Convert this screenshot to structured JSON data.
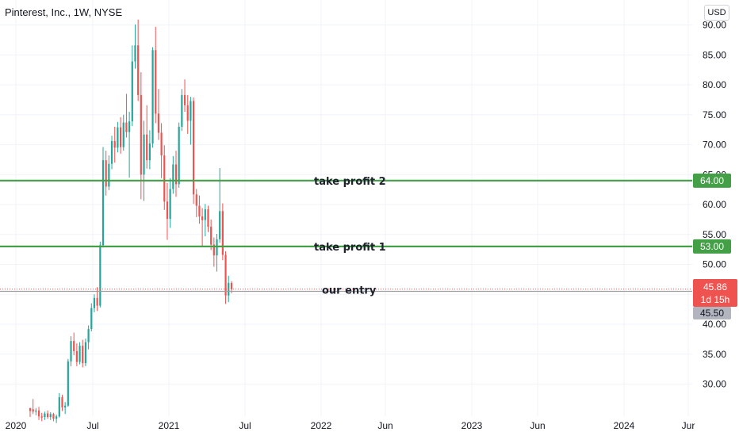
{
  "title": "Pinterest, Inc., 1W, NYSE",
  "currency": "USD",
  "colors": {
    "up": "#26a69a",
    "down": "#ef5350",
    "level_line": "#43a047",
    "grid": "#f0f3fa",
    "entry_line": "#9e9e9e",
    "last_price": "#ef5350",
    "entry_badge": "#b2b5be"
  },
  "chart_data": {
    "type": "candlestick",
    "y_ticks": [
      30,
      35,
      40,
      45,
      50,
      55,
      60,
      65,
      70,
      75,
      80,
      85,
      90
    ],
    "y_tick_labels": [
      "30.00",
      "35.00",
      "40.00",
      "45.00",
      "50.00",
      "55.00",
      "60.00",
      "65.00",
      "70.00",
      "75.00",
      "80.00",
      "85.00",
      "90.00"
    ],
    "x_tick_labels": [
      "2020",
      "Jul",
      "2021",
      "Jul",
      "2022",
      "Jun",
      "2023",
      "Jun",
      "2024",
      "Jur"
    ],
    "ylim": [
      25,
      92
    ],
    "levels": [
      {
        "name": "take profit 2",
        "value": 64.0,
        "label": "64.00"
      },
      {
        "name": "take profit 1",
        "value": 53.0,
        "label": "53.00"
      }
    ],
    "entry": {
      "name": "our entry",
      "value": 45.5,
      "label": "45.50"
    },
    "last_price": {
      "value": 45.86,
      "label": "45.86",
      "countdown": "1d 15h"
    },
    "candles": [
      [
        26,
        26,
        24.5,
        25.5
      ],
      [
        25.8,
        27.5,
        25,
        25.4
      ],
      [
        25.4,
        26,
        24.8,
        25.6
      ],
      [
        25.6,
        26.2,
        24,
        24.6
      ],
      [
        24.6,
        25.2,
        23.8,
        24.4
      ],
      [
        24.5,
        25.4,
        24,
        25.1
      ],
      [
        25.1,
        25.6,
        24.2,
        24.5
      ],
      [
        24.5,
        25.3,
        24,
        25.0
      ],
      [
        25.0,
        25.2,
        23.8,
        24.2
      ],
      [
        24.2,
        24.9,
        23.5,
        24.6
      ],
      [
        24.6,
        28.5,
        24.4,
        27.8
      ],
      [
        27.8,
        28.2,
        25.5,
        26.1
      ],
      [
        26.1,
        27.0,
        25.0,
        26.4
      ],
      [
        26.4,
        34.2,
        26.2,
        33.8
      ],
      [
        33.8,
        38.0,
        33.0,
        37.2
      ],
      [
        37.2,
        38.6,
        34.8,
        35.5
      ],
      [
        35.5,
        36.8,
        33.0,
        33.7
      ],
      [
        33.7,
        37.0,
        33.3,
        36.4
      ],
      [
        36.4,
        37.4,
        32.8,
        33.5
      ],
      [
        33.5,
        37.6,
        33.0,
        37.0
      ],
      [
        37.0,
        39.8,
        35.8,
        39.2
      ],
      [
        39.2,
        43.5,
        38.8,
        42.7
      ],
      [
        42.7,
        45.0,
        42.0,
        44.4
      ],
      [
        44.4,
        46.2,
        42.2,
        43.1
      ],
      [
        43.1,
        53.8,
        42.8,
        53.2
      ],
      [
        53.2,
        69.6,
        52.8,
        67.4
      ],
      [
        67.4,
        69.0,
        61.5,
        63.0
      ],
      [
        63.0,
        68.2,
        62.4,
        66.8
      ],
      [
        66.8,
        71.5,
        65.9,
        70.6
      ],
      [
        70.6,
        73.0,
        67.0,
        69.5
      ],
      [
        69.5,
        73.8,
        68.7,
        72.9
      ],
      [
        72.9,
        74.6,
        68.5,
        69.6
      ],
      [
        69.6,
        75.0,
        69.0,
        73.7
      ],
      [
        73.7,
        78.5,
        71.2,
        72.1
      ],
      [
        72.1,
        75.5,
        64.5,
        73.9
      ],
      [
        73.9,
        86.6,
        73.1,
        83.9
      ],
      [
        83.9,
        90.1,
        82.7,
        86.6
      ],
      [
        86.6,
        90.9,
        77.3,
        78.3
      ],
      [
        78.3,
        82.1,
        60.9,
        65.0
      ],
      [
        65.0,
        74.0,
        60.6,
        71.7
      ],
      [
        71.7,
        76.6,
        66.0,
        67.4
      ],
      [
        67.4,
        72.4,
        65.9,
        70.2
      ],
      [
        70.2,
        86.3,
        69.5,
        85.8
      ],
      [
        85.8,
        89.7,
        73.6,
        75.2
      ],
      [
        75.2,
        79.3,
        70.8,
        72.0
      ],
      [
        72.0,
        73.6,
        64.4,
        68.2
      ],
      [
        68.2,
        69.9,
        59.1,
        60.5
      ],
      [
        60.5,
        63.6,
        54.1,
        57.6
      ],
      [
        57.6,
        64.4,
        56.1,
        62.6
      ],
      [
        62.6,
        68.1,
        61.8,
        66.7
      ],
      [
        66.7,
        69.0,
        61.3,
        63.4
      ],
      [
        63.4,
        73.7,
        62.8,
        73.0
      ],
      [
        73.0,
        79.3,
        72.3,
        78.3
      ],
      [
        78.3,
        80.9,
        75.5,
        76.6
      ],
      [
        76.6,
        78.3,
        71.8,
        74.0
      ],
      [
        74.0,
        78.0,
        70.0,
        77.3
      ],
      [
        77.3,
        77.9,
        60.1,
        61.7
      ],
      [
        61.7,
        62.6,
        57.9,
        59.8
      ],
      [
        59.8,
        61.5,
        56.8,
        58.0
      ],
      [
        58.0,
        59.4,
        53.0,
        57.4
      ],
      [
        57.4,
        60.1,
        54.7,
        59.2
      ],
      [
        59.2,
        59.8,
        55.4,
        56.3
      ],
      [
        56.3,
        57.5,
        52.4,
        53.3
      ],
      [
        53.3,
        54.5,
        49.6,
        51.5
      ],
      [
        51.5,
        55.1,
        48.8,
        54.2
      ],
      [
        54.2,
        66.1,
        53.6,
        58.9
      ],
      [
        58.9,
        60.2,
        50.7,
        51.6
      ],
      [
        51.6,
        52.2,
        43.4,
        44.8
      ],
      [
        44.8,
        48.1,
        43.7,
        46.9
      ],
      [
        46.9,
        47.2,
        45.2,
        45.86
      ]
    ]
  },
  "chart_colors": [
    "#26a69a",
    "#ef5350"
  ]
}
